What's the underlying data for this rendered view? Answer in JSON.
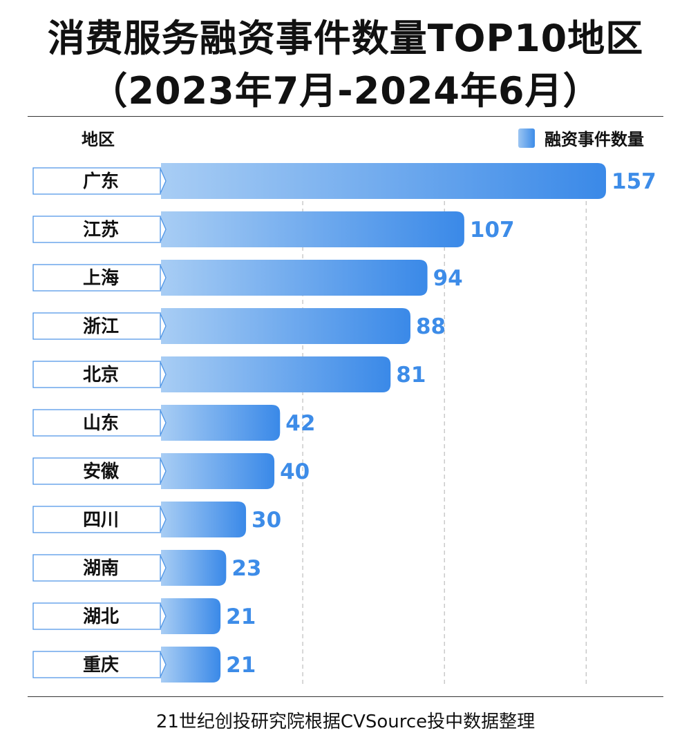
{
  "title": {
    "line1": "消费服务融资事件数量TOP10地区",
    "line2": "（2023年7月-2024年6月）"
  },
  "header": {
    "region_label": "地区"
  },
  "legend": {
    "label": "融资事件数量"
  },
  "colors": {
    "bar_start": "#a8cdf4",
    "bar_end": "#3a89e8",
    "value_text": "#3d8ce8",
    "label_border": "#4d94e6"
  },
  "chart_data": {
    "type": "bar",
    "orientation": "horizontal",
    "categories": [
      "广东",
      "江苏",
      "上海",
      "浙江",
      "北京",
      "山东",
      "安徽",
      "四川",
      "湖南",
      "湖北",
      "重庆"
    ],
    "values": [
      157,
      107,
      94,
      88,
      81,
      42,
      40,
      30,
      23,
      21,
      21
    ],
    "series_name": "融资事件数量",
    "xlim": [
      0,
      160
    ],
    "grid": "vertical dashed"
  },
  "footer": {
    "source": "21世纪创投研究院根据CVSource投中数据整理"
  }
}
